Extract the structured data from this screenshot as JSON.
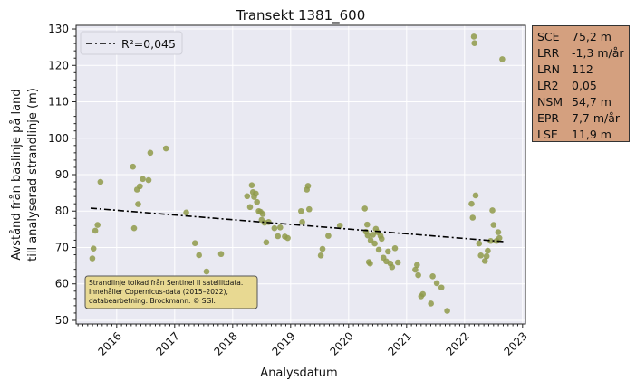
{
  "chart_data": {
    "type": "scatter",
    "title": "Transekt 1381_600",
    "xlabel": "Analysdatum",
    "ylabel_line1": "Avstånd från baslinje på land",
    "ylabel_line2": "till analyserad strandlinje (m)",
    "xlim": [
      2015.3,
      2023.05
    ],
    "ylim": [
      49,
      131
    ],
    "x_ticks": [
      "2016",
      "2017",
      "2018",
      "2019",
      "2020",
      "2021",
      "2022",
      "2023"
    ],
    "y_ticks": [
      50,
      60,
      70,
      80,
      90,
      100,
      110,
      120,
      130
    ],
    "grid": true,
    "legend": {
      "placement": "top-left",
      "entries": [
        "R²=0,045"
      ]
    },
    "series": [
      {
        "kind": "points",
        "color": "#8f9a4a",
        "points": [
          [
            2015.58,
            67.0
          ],
          [
            2015.6,
            69.7
          ],
          [
            2015.63,
            74.6
          ],
          [
            2015.67,
            76.2
          ],
          [
            2015.72,
            88.0
          ],
          [
            2016.28,
            92.2
          ],
          [
            2016.3,
            75.3
          ],
          [
            2016.35,
            85.9
          ],
          [
            2016.37,
            81.9
          ],
          [
            2016.4,
            86.8
          ],
          [
            2016.45,
            88.8
          ],
          [
            2016.55,
            88.5
          ],
          [
            2016.58,
            96.0
          ],
          [
            2016.85,
            97.2
          ],
          [
            2017.2,
            79.6
          ],
          [
            2017.35,
            71.2
          ],
          [
            2017.42,
            67.9
          ],
          [
            2017.55,
            63.4
          ],
          [
            2017.8,
            68.2
          ],
          [
            2018.25,
            84.1
          ],
          [
            2018.3,
            81.1
          ],
          [
            2018.33,
            87.1
          ],
          [
            2018.35,
            85.2
          ],
          [
            2018.37,
            83.9
          ],
          [
            2018.4,
            84.8
          ],
          [
            2018.42,
            82.5
          ],
          [
            2018.45,
            80.0
          ],
          [
            2018.48,
            79.8
          ],
          [
            2018.5,
            77.6
          ],
          [
            2018.52,
            79.2
          ],
          [
            2018.55,
            76.8
          ],
          [
            2018.58,
            71.4
          ],
          [
            2018.62,
            77.0
          ],
          [
            2018.72,
            75.3
          ],
          [
            2018.78,
            73.1
          ],
          [
            2018.82,
            75.5
          ],
          [
            2018.9,
            73.0
          ],
          [
            2018.95,
            72.6
          ],
          [
            2019.18,
            80.0
          ],
          [
            2019.2,
            77.0
          ],
          [
            2019.28,
            85.9
          ],
          [
            2019.3,
            86.9
          ],
          [
            2019.32,
            80.5
          ],
          [
            2019.52,
            67.8
          ],
          [
            2019.55,
            69.6
          ],
          [
            2019.65,
            73.2
          ],
          [
            2019.85,
            76.0
          ],
          [
            2020.28,
            80.7
          ],
          [
            2020.3,
            74.3
          ],
          [
            2020.32,
            76.3
          ],
          [
            2020.33,
            73.3
          ],
          [
            2020.35,
            66.0
          ],
          [
            2020.37,
            65.6
          ],
          [
            2020.38,
            72.0
          ],
          [
            2020.42,
            73.5
          ],
          [
            2020.45,
            71.1
          ],
          [
            2020.47,
            75.1
          ],
          [
            2020.5,
            74.2
          ],
          [
            2020.52,
            69.4
          ],
          [
            2020.55,
            73.2
          ],
          [
            2020.57,
            72.4
          ],
          [
            2020.6,
            67.2
          ],
          [
            2020.65,
            66.2
          ],
          [
            2020.68,
            68.9
          ],
          [
            2020.72,
            65.6
          ],
          [
            2020.75,
            64.6
          ],
          [
            2020.8,
            69.8
          ],
          [
            2020.85,
            65.9
          ],
          [
            2021.15,
            63.9
          ],
          [
            2021.18,
            65.2
          ],
          [
            2021.2,
            62.4
          ],
          [
            2021.25,
            56.6
          ],
          [
            2021.28,
            57.2
          ],
          [
            2021.42,
            54.6
          ],
          [
            2021.45,
            62.1
          ],
          [
            2021.52,
            60.2
          ],
          [
            2021.6,
            59.0
          ],
          [
            2021.7,
            52.6
          ],
          [
            2022.12,
            82.0
          ],
          [
            2022.14,
            78.2
          ],
          [
            2022.16,
            127.9
          ],
          [
            2022.17,
            126.1
          ],
          [
            2022.19,
            84.3
          ],
          [
            2022.25,
            71.1
          ],
          [
            2022.28,
            67.8
          ],
          [
            2022.35,
            66.3
          ],
          [
            2022.38,
            67.6
          ],
          [
            2022.4,
            69.1
          ],
          [
            2022.45,
            71.8
          ],
          [
            2022.48,
            80.2
          ],
          [
            2022.5,
            76.2
          ],
          [
            2022.55,
            71.8
          ],
          [
            2022.58,
            74.2
          ],
          [
            2022.6,
            72.6
          ],
          [
            2022.65,
            121.7
          ]
        ]
      },
      {
        "kind": "trend",
        "name": "R²=0,045",
        "color": "#000000",
        "x": [
          2015.55,
          2022.68
        ],
        "y": [
          80.8,
          71.6
        ]
      }
    ],
    "annotation": "Strandlinje tolkad från Sentinel II satellitdata.\nInnehåller Copernicus-data (2015–2022),\ndatabearbetning: Brockmann. © SGI.",
    "annotation_placement": "bottom-left",
    "annotation_bg": "#e8d992",
    "plot_bg": "#e9e9f2"
  },
  "stats": [
    {
      "key": "SCE",
      "value": "75,2 m"
    },
    {
      "key": "LRR",
      "value": "-1,3 m/år"
    },
    {
      "key": "LRN",
      "value": "112"
    },
    {
      "key": "LR2",
      "value": "0,05"
    },
    {
      "key": "NSM",
      "value": "54,7 m"
    },
    {
      "key": "EPR",
      "value": "7,7 m/år"
    },
    {
      "key": "LSE",
      "value": "11,9 m"
    }
  ],
  "stats_bg": "#d4a07f"
}
